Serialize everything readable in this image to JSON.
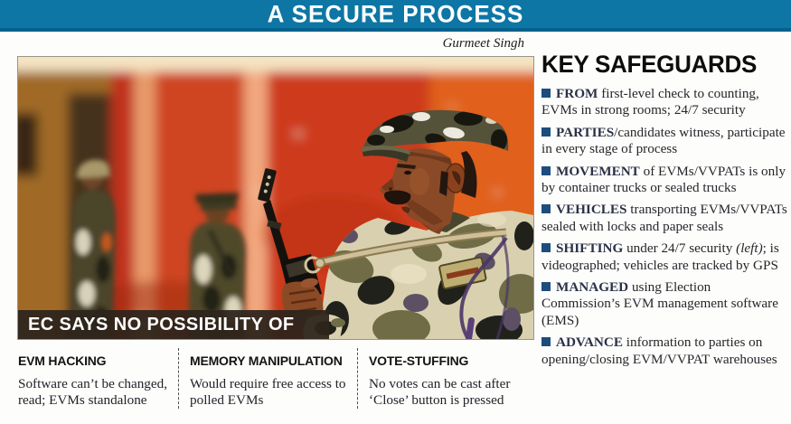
{
  "colors": {
    "header_bg": "#0d76a4",
    "header_border": "#04618d",
    "bullet": "#1d4d7c",
    "caption_bg": "rgba(46,36,28,0.94)"
  },
  "header": {
    "title": "A SECURE PROCESS"
  },
  "photo": {
    "credit": "Gurmeet Singh",
    "caption": "EC SAYS NO POSSIBILITY OF"
  },
  "safeguards": {
    "title": "KEY SAFEGUARDS",
    "items": [
      {
        "lead": "FROM",
        "pre": " first-level check to counting, EVMs in strong rooms; 24/7 security",
        "italic": "",
        "post": ""
      },
      {
        "lead": "PARTIES",
        "pre": "/candidates witness, participate in every stage of process",
        "italic": "",
        "post": ""
      },
      {
        "lead": "MOVEMENT",
        "pre": " of EVMs/VVPATs is only by container trucks or sealed trucks",
        "italic": "",
        "post": ""
      },
      {
        "lead": "VEHICLES",
        "pre": " transporting EVMs/VVPATs sealed with locks and paper seals",
        "italic": "",
        "post": ""
      },
      {
        "lead": "SHIFTING",
        "pre": " under 24/7 security ",
        "italic": "(left)",
        "post": "; is videographed; vehicles are tracked by GPS"
      },
      {
        "lead": "MANAGED",
        "pre": " using Election Commission’s EVM management software (EMS)",
        "italic": "",
        "post": ""
      },
      {
        "lead": "ADVANCE",
        "pre": " information to parties on opening/closing EVM/VVPAT warehouses",
        "italic": "",
        "post": ""
      }
    ]
  },
  "claims": {
    "columns": [
      {
        "title": "EVM HACKING",
        "body": "Software can’t be changed, read; EVMs standalone"
      },
      {
        "title": "MEMORY MANIPULATION",
        "body": "Would require free access to polled EVMs"
      },
      {
        "title": "VOTE-STUFFING",
        "body": "No votes can be cast after ‘Close’ button is pressed"
      }
    ]
  }
}
